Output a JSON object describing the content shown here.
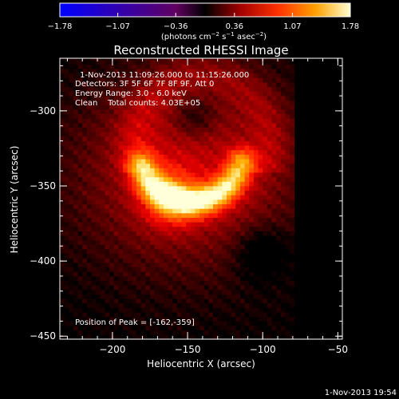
{
  "chart_data": {
    "type": "heatmap",
    "title": "Reconstructed RHESSI Image",
    "xlabel": "Heliocentric X (arcsec)",
    "ylabel": "Heliocentric Y (arcsec)",
    "xlim": [
      -235,
      -47
    ],
    "ylim": [
      -452,
      -265
    ],
    "x_ticks": [
      {
        "value": -200,
        "label": "−200"
      },
      {
        "value": -150,
        "label": "−150"
      },
      {
        "value": -100,
        "label": "−100"
      },
      {
        "value": -50,
        "label": "−50"
      }
    ],
    "y_ticks": [
      {
        "value": -300,
        "label": "−300"
      },
      {
        "value": -350,
        "label": "−350"
      },
      {
        "value": -400,
        "label": "−400"
      },
      {
        "value": -450,
        "label": "−450"
      }
    ],
    "colorbar": {
      "range": [
        -1.78,
        1.78
      ],
      "ticks": [
        {
          "value": -1.78,
          "label": "−1.78"
        },
        {
          "value": -1.07,
          "label": "−1.07"
        },
        {
          "value": -0.36,
          "label": "−0.36"
        },
        {
          "value": 0.36,
          "label": "0.36"
        },
        {
          "value": 1.07,
          "label": "1.07"
        },
        {
          "value": 1.78,
          "label": "1.78"
        }
      ],
      "unit": {
        "prefix": "(photons cm",
        "exp1": "−2",
        "mid1": " s",
        "exp2": "−1",
        "mid2": " asec",
        "exp3": "−2",
        "suffix": ")"
      }
    },
    "image_region": {
      "x": [
        -235,
        -79
      ],
      "y": [
        -452,
        -265
      ]
    },
    "peak": {
      "x": -162,
      "y": -359
    },
    "source": {
      "arc_center": [
        -148,
        -325
      ],
      "arc_radius": 35,
      "arc_start_deg": 200,
      "arc_end_deg": 345,
      "arc_peak": 1.78,
      "halo_peak": 0.6
    },
    "annotations": {
      "time_range": "1-Nov-2013 11:09:26.000 to 11:15:26.000",
      "detectors": "Detectors: 3F 5F 6F 7F 8F 9F, Att 0",
      "energy": "Energy Range: 3.0 - 6.0 keV",
      "clean": "Clean    Total counts: 4.03E+05",
      "peak_label": "Position of Peak = [-162,-359]"
    },
    "timestamp": "1-Nov-2013 19:54",
    "grid": false
  }
}
